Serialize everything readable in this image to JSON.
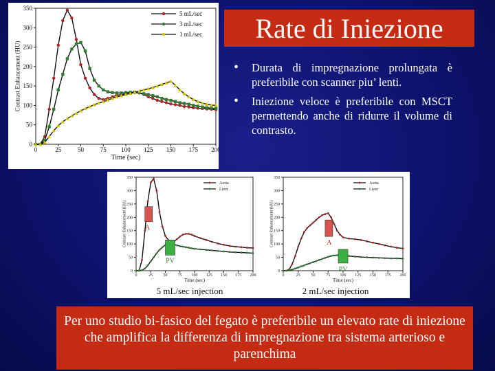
{
  "slide": {
    "title": "Rate di Iniezione",
    "bullets": [
      "Durata di impregnazione prolungata è preferibile con scanner piu’ lenti.",
      "Iniezione veloce è preferibile con MSCT permettendo anche di ridurre il volume di contrasto."
    ],
    "footer": "Per uno studio bi-fasico del fegato è preferibile un elevato rate di iniezione che amplifica la differenza di impregnazione tra sistema arterioso e parenchima",
    "colors": {
      "background": "#0d126e",
      "accent_box": "#c52a12"
    }
  },
  "chart_data": [
    {
      "type": "line",
      "xlabel": "Time (sec)",
      "ylabel": "Contrast Enhancement (HU)",
      "xlim": [
        0,
        200
      ],
      "ylim": [
        0,
        350
      ],
      "xticks": [
        0,
        25,
        50,
        75,
        100,
        125,
        150,
        175,
        200
      ],
      "yticks": [
        0,
        50,
        100,
        150,
        200,
        250,
        300,
        350
      ],
      "legend_position": "top-right",
      "series": [
        {
          "name": "5 mL/sec",
          "color": "#b22222",
          "marker": "circle",
          "x": [
            0,
            5,
            10,
            15,
            20,
            25,
            30,
            35,
            40,
            45,
            50,
            55,
            60,
            65,
            70,
            75,
            80,
            85,
            90,
            95,
            100,
            105,
            110,
            115,
            120,
            125,
            130,
            135,
            140,
            145,
            150,
            155,
            160,
            165,
            170,
            175,
            180,
            185,
            190,
            195,
            200
          ],
          "y": [
            0,
            0,
            20,
            90,
            170,
            255,
            318,
            345,
            325,
            270,
            205,
            170,
            145,
            128,
            118,
            115,
            118,
            122,
            126,
            128,
            130,
            131,
            133,
            132,
            128,
            122,
            118,
            113,
            110,
            107,
            104,
            102,
            100,
            97,
            96,
            94,
            93,
            92,
            91,
            90,
            89
          ]
        },
        {
          "name": "3 mL/sec",
          "color": "#2e7d32",
          "marker": "square",
          "x": [
            0,
            5,
            10,
            15,
            20,
            25,
            30,
            35,
            40,
            45,
            50,
            55,
            60,
            65,
            70,
            75,
            80,
            85,
            90,
            95,
            100,
            105,
            110,
            115,
            120,
            125,
            130,
            135,
            140,
            145,
            150,
            155,
            160,
            165,
            170,
            175,
            180,
            185,
            190,
            195,
            200
          ],
          "y": [
            0,
            0,
            10,
            45,
            90,
            140,
            180,
            220,
            245,
            258,
            262,
            240,
            195,
            165,
            150,
            140,
            135,
            133,
            132,
            132,
            133,
            134,
            134,
            133,
            130,
            128,
            125,
            122,
            118,
            115,
            113,
            110,
            107,
            105,
            103,
            100,
            98,
            96,
            94,
            93,
            92
          ]
        },
        {
          "name": "1 mL/sec",
          "color": "#d4c400",
          "marker": "triangle",
          "x": [
            0,
            5,
            10,
            15,
            20,
            25,
            30,
            35,
            40,
            45,
            50,
            55,
            60,
            65,
            70,
            75,
            80,
            85,
            90,
            95,
            100,
            105,
            110,
            115,
            120,
            125,
            130,
            135,
            140,
            145,
            150,
            155,
            160,
            165,
            170,
            175,
            180,
            185,
            190,
            195,
            200
          ],
          "y": [
            0,
            0,
            5,
            20,
            35,
            48,
            58,
            66,
            73,
            80,
            86,
            92,
            97,
            102,
            106,
            110,
            114,
            118,
            122,
            125,
            128,
            131,
            134,
            137,
            140,
            143,
            146,
            150,
            154,
            158,
            162,
            152,
            140,
            130,
            122,
            115,
            110,
            106,
            103,
            101,
            100
          ]
        }
      ]
    },
    {
      "type": "line",
      "xlabel": "Time (sec)",
      "ylabel": "Contrast Enhancement (HU)",
      "caption": "5 mL/sec injection",
      "xlim": [
        0,
        200
      ],
      "ylim": [
        0,
        350
      ],
      "xticks": [
        0,
        25,
        50,
        75,
        100,
        125,
        150,
        175,
        200
      ],
      "yticks": [
        0,
        50,
        100,
        150,
        200,
        250,
        300,
        350
      ],
      "legend_position": "top-right",
      "annotations": [
        "A",
        "PV"
      ],
      "series": [
        {
          "name": "Aorta",
          "color": "#b22222",
          "x": [
            0,
            5,
            10,
            15,
            20,
            25,
            30,
            35,
            40,
            45,
            50,
            55,
            60,
            65,
            70,
            75,
            80,
            85,
            90,
            95,
            100,
            110,
            120,
            130,
            140,
            150,
            160,
            170,
            180,
            190,
            200
          ],
          "y": [
            0,
            0,
            40,
            150,
            260,
            330,
            345,
            300,
            220,
            165,
            130,
            115,
            108,
            110,
            118,
            128,
            135,
            138,
            138,
            135,
            130,
            122,
            115,
            108,
            102,
            97,
            93,
            90,
            88,
            86,
            85
          ]
        },
        {
          "name": "Liver",
          "color": "#2e7d32",
          "x": [
            0,
            5,
            10,
            15,
            20,
            25,
            30,
            35,
            40,
            45,
            50,
            55,
            60,
            65,
            70,
            75,
            80,
            85,
            90,
            95,
            100,
            110,
            120,
            130,
            140,
            150,
            160,
            170,
            180,
            190,
            200
          ],
          "y": [
            0,
            0,
            2,
            8,
            20,
            35,
            50,
            65,
            78,
            88,
            96,
            100,
            100,
            98,
            95,
            92,
            90,
            88,
            86,
            84,
            82,
            80,
            78,
            76,
            74,
            72,
            70,
            69,
            68,
            67,
            66
          ]
        }
      ]
    },
    {
      "type": "line",
      "xlabel": "Time (sec)",
      "ylabel": "Contrast Enhancement (HU)",
      "caption": "2 mL/sec injection",
      "xlim": [
        0,
        200
      ],
      "ylim": [
        0,
        350
      ],
      "xticks": [
        0,
        25,
        50,
        75,
        100,
        125,
        150,
        175,
        200
      ],
      "yticks": [
        0,
        50,
        100,
        150,
        200,
        250,
        300,
        350
      ],
      "legend_position": "top-right",
      "annotations": [
        "A",
        "PV"
      ],
      "series": [
        {
          "name": "Aorta",
          "color": "#b22222",
          "x": [
            0,
            5,
            10,
            15,
            20,
            25,
            30,
            35,
            40,
            45,
            50,
            55,
            60,
            65,
            70,
            75,
            80,
            85,
            90,
            95,
            100,
            110,
            120,
            130,
            140,
            150,
            160,
            170,
            180,
            190,
            200
          ],
          "y": [
            0,
            0,
            5,
            25,
            55,
            90,
            120,
            145,
            160,
            170,
            180,
            190,
            200,
            208,
            212,
            215,
            200,
            175,
            150,
            135,
            125,
            120,
            118,
            115,
            110,
            105,
            100,
            95,
            90,
            86,
            83
          ]
        },
        {
          "name": "Liver",
          "color": "#2e7d32",
          "x": [
            0,
            5,
            10,
            15,
            20,
            25,
            30,
            35,
            40,
            45,
            50,
            55,
            60,
            65,
            70,
            75,
            80,
            85,
            90,
            95,
            100,
            110,
            120,
            130,
            140,
            150,
            160,
            170,
            180,
            190,
            200
          ],
          "y": [
            0,
            0,
            1,
            4,
            8,
            12,
            16,
            20,
            24,
            28,
            32,
            36,
            40,
            44,
            48,
            52,
            55,
            57,
            58,
            58,
            57,
            55,
            53,
            51,
            50,
            49,
            48,
            47,
            46,
            46,
            45
          ]
        }
      ]
    }
  ]
}
